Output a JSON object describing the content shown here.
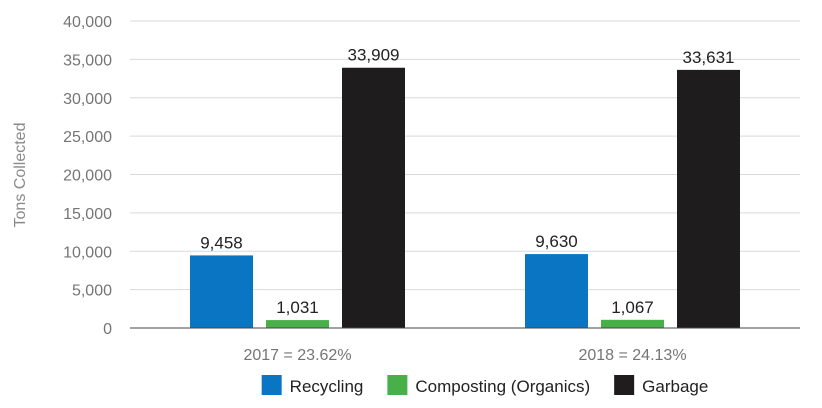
{
  "chart_data": {
    "type": "bar",
    "ylabel": "Tons Collected",
    "ylim": [
      0,
      40000
    ],
    "yticks": [
      0,
      5000,
      10000,
      15000,
      20000,
      25000,
      30000,
      35000,
      40000
    ],
    "ytick_labels": [
      "0",
      "5,000",
      "10,000",
      "15,000",
      "20,000",
      "25,000",
      "30,000",
      "35,000",
      "40,000"
    ],
    "grid": true,
    "legend_position": "bottom",
    "categories": [
      "2017 = 23.62%",
      "2018 = 24.13%"
    ],
    "series": [
      {
        "name": "Recycling",
        "color": "#0a76c3",
        "values": [
          9458,
          9630
        ],
        "labels": [
          "9,458",
          "9,630"
        ]
      },
      {
        "name": "Composting (Organics)",
        "color": "#47b049",
        "values": [
          1031,
          1067
        ],
        "labels": [
          "1,031",
          "1,067"
        ]
      },
      {
        "name": "Garbage",
        "color": "#1f1c1d",
        "values": [
          33909,
          33631
        ],
        "labels": [
          "33,909",
          "33,631"
        ]
      }
    ]
  }
}
